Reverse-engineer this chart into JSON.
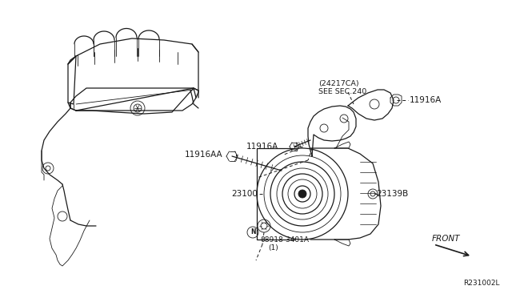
{
  "bg_color": "#ffffff",
  "line_color": "#1a1a1a",
  "figsize": [
    6.4,
    3.72
  ],
  "dpi": 100,
  "labels": {
    "ref_code": "R231002L",
    "front_label": "FRONT",
    "part_24217CA": "(24217CA)\nSEE SEC.240",
    "part_11916A_left": "11916A",
    "part_11916A_right": "11916A",
    "part_11916AA": "11916AA",
    "part_23100": "23100",
    "part_23139B": "23139B",
    "part_bolt_n": "N",
    "part_bolt_label": "08918-3401A",
    "part_bolt_qty": "(1)"
  }
}
